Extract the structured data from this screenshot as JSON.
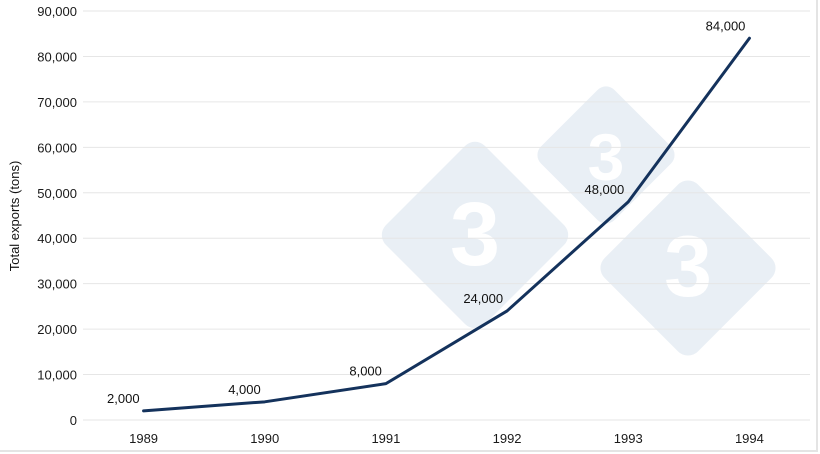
{
  "chart_data": {
    "type": "line",
    "title": "",
    "xlabel": "",
    "ylabel": "Total exports (tons)",
    "categories": [
      "1989",
      "1990",
      "1991",
      "1992",
      "1993",
      "1994"
    ],
    "series": [
      {
        "name": "Total exports",
        "values": [
          2000,
          4000,
          8000,
          24000,
          48000,
          84000
        ],
        "labels": [
          "2,000",
          "4,000",
          "8,000",
          "24,000",
          "48,000",
          "84,000"
        ],
        "color": "#14325c"
      }
    ],
    "ylim": [
      0,
      90000
    ],
    "yticks": [
      0,
      10000,
      20000,
      30000,
      40000,
      50000,
      60000,
      70000,
      80000,
      90000
    ],
    "ytick_labels": [
      "0",
      "10,000",
      "20,000",
      "30,000",
      "40,000",
      "50,000",
      "60,000",
      "70,000",
      "80,000",
      "90,000"
    ],
    "grid": true,
    "legend": "none",
    "data_labels": true
  },
  "colors": {
    "line": "#14325c",
    "grid": "#e6e6e6",
    "watermark": "#e8eef5"
  }
}
